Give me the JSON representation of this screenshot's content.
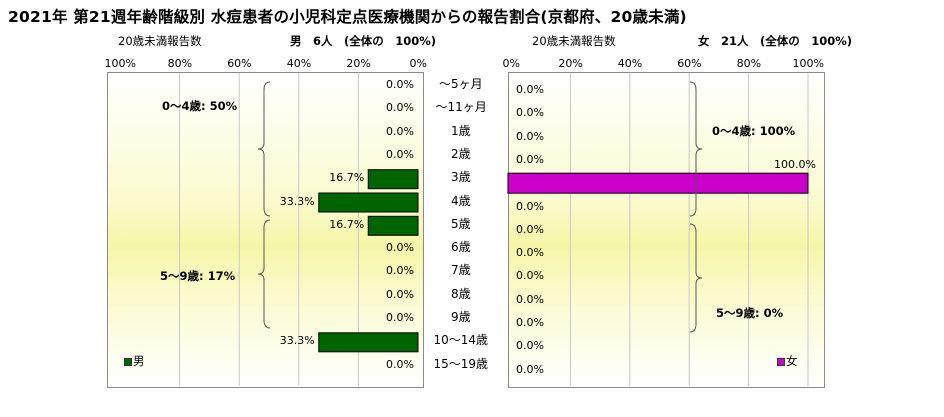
{
  "title": "2021年 第21週年齢階級別 水痘患者の小児科定点医療機関からの報告割合(京都府、20歳未満)",
  "left_header": {
    "axis_label": "20歳未満報告数",
    "sex_total": "男　6人　(全体の　100%)"
  },
  "right_header": {
    "axis_label": "20歳未満報告数",
    "sex_total": "女　21人　(全体の　100%)"
  },
  "colors": {
    "male": "#006400",
    "female": "#cc00cc"
  },
  "chart_data": [
    {
      "type": "bar",
      "orientation": "horizontal-reversed",
      "categories": [
        "～5ヶ月",
        "～11ヶ月",
        "1歳",
        "2歳",
        "3歳",
        "4歳",
        "5歳",
        "6歳",
        "7歳",
        "8歳",
        "9歳",
        "10～14歳",
        "15～19歳"
      ],
      "series": [
        {
          "name": "男",
          "values": [
            0.0,
            0.0,
            0.0,
            0.0,
            16.7,
            33.3,
            16.7,
            0.0,
            0.0,
            0.0,
            0.0,
            33.3,
            0.0
          ]
        }
      ],
      "value_labels": [
        "0.0%",
        "0.0%",
        "0.0%",
        "0.0%",
        "16.7%",
        "33.3%",
        "16.7%",
        "0.0%",
        "0.0%",
        "0.0%",
        "0.0%",
        "33.3%",
        "0.0%"
      ],
      "xlim": [
        0,
        100
      ],
      "ticks": [
        "100%",
        "80%",
        "60%",
        "40%",
        "20%",
        "0%"
      ],
      "brace_labels": [
        "0～4歳: 50%",
        "5～9歳: 17%"
      ],
      "legend": "男",
      "legend_position": "bottom-left"
    },
    {
      "type": "bar",
      "orientation": "horizontal",
      "categories": [
        "～5ヶ月",
        "～11ヶ月",
        "1歳",
        "2歳",
        "3歳",
        "4歳",
        "5歳",
        "6歳",
        "7歳",
        "8歳",
        "9歳",
        "10～14歳",
        "15～19歳"
      ],
      "series": [
        {
          "name": "女",
          "values": [
            0.0,
            0.0,
            0.0,
            0.0,
            100.0,
            0.0,
            0.0,
            0.0,
            0.0,
            0.0,
            0.0,
            0.0,
            0.0
          ]
        }
      ],
      "value_labels": [
        "0.0%",
        "0.0%",
        "0.0%",
        "0.0%",
        "100.0%",
        "0.0%",
        "0.0%",
        "0.0%",
        "0.0%",
        "0.0%",
        "0.0%",
        "0.0%",
        "0.0%"
      ],
      "xlim": [
        0,
        100
      ],
      "ticks": [
        "0%",
        "20%",
        "40%",
        "60%",
        "80%",
        "100%"
      ],
      "brace_labels": [
        "0～4歳: 100%",
        "5～9歳: 0%"
      ],
      "legend": "女",
      "legend_position": "bottom-right"
    }
  ]
}
